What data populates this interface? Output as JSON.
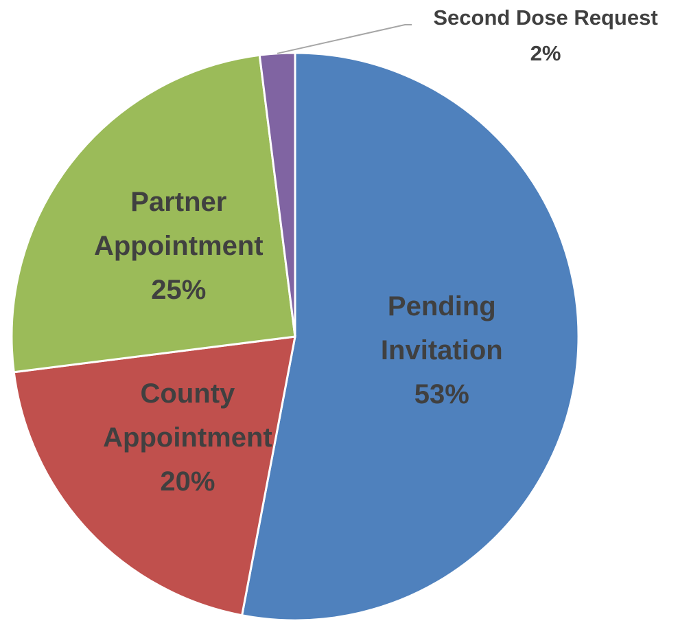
{
  "chart_data": {
    "type": "pie",
    "categories": [
      "Pending Invitation",
      "County Appointment",
      "Partner Appointment",
      "Second Dose Request"
    ],
    "values": [
      53,
      20,
      25,
      2
    ],
    "value_labels": [
      "53%",
      "20%",
      "25%",
      "2%"
    ],
    "colors": [
      "#4f81bd",
      "#c0504d",
      "#9bbb59",
      "#8064a2"
    ]
  }
}
